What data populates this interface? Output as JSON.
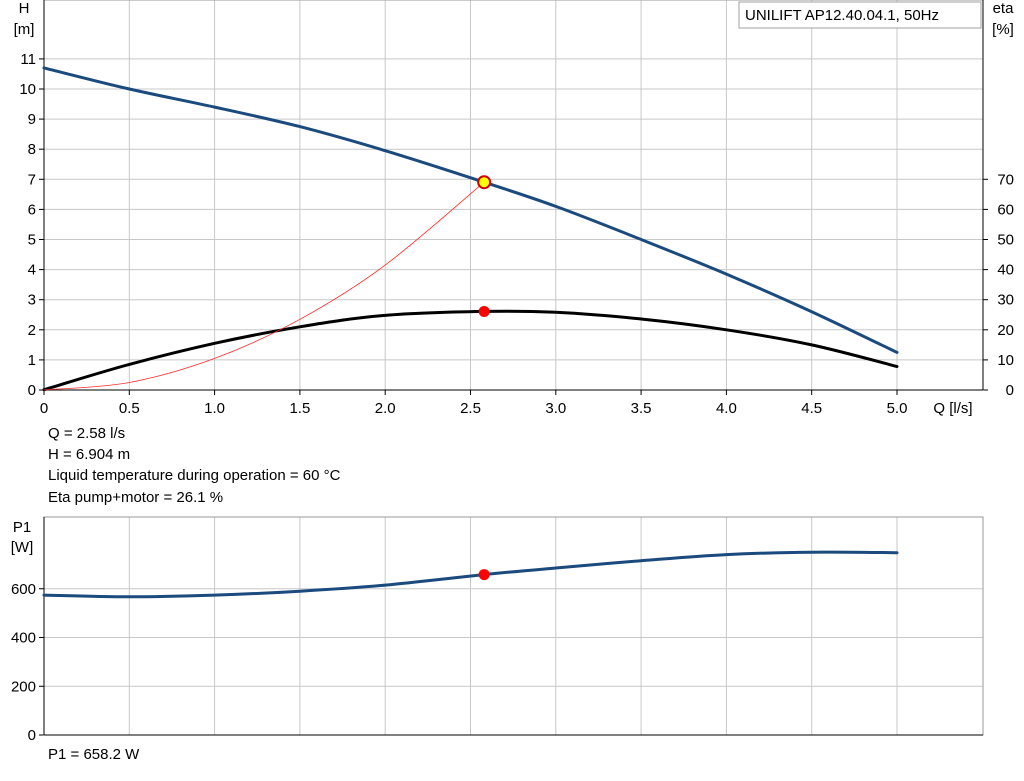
{
  "chart_data": [
    {
      "type": "line",
      "title": "UNILIFT AP12.40.04.1, 50Hz",
      "xlabel": "Q [l/s]",
      "ylabel_lines": [
        "H",
        "[m]"
      ],
      "y2label_lines": [
        "eta",
        "[%]"
      ],
      "xlim": [
        0,
        5.0
      ],
      "ylim": [
        0,
        11
      ],
      "y2lim": [
        0,
        70
      ],
      "x_ticks": [
        "0",
        "0.5",
        "1.0",
        "1.5",
        "2.0",
        "2.5",
        "3.0",
        "3.5",
        "4.0",
        "4.5",
        "5.0"
      ],
      "y_ticks": [
        "0",
        "1",
        "2",
        "3",
        "4",
        "5",
        "6",
        "7",
        "8",
        "9",
        "10",
        "11"
      ],
      "y2_ticks": [
        "0",
        "10",
        "20",
        "30",
        "40",
        "50",
        "60",
        "70"
      ],
      "grid": true,
      "series": [
        {
          "color": "#1a4a7e",
          "axis": "left",
          "points": [
            [
              0,
              10.7
            ],
            [
              0.5,
              10.0
            ],
            [
              1.0,
              9.4
            ],
            [
              1.5,
              8.75
            ],
            [
              2.0,
              7.95
            ],
            [
              2.58,
              6.904
            ],
            [
              3.0,
              6.1
            ],
            [
              3.5,
              5.0
            ],
            [
              4.0,
              3.85
            ],
            [
              4.5,
              2.6
            ],
            [
              5.0,
              1.25
            ]
          ]
        },
        {
          "color": "#000000",
          "axis": "right",
          "points": [
            [
              0,
              0.1
            ],
            [
              0.5,
              8.5
            ],
            [
              1.0,
              15.5
            ],
            [
              1.5,
              21.0
            ],
            [
              2.0,
              24.8
            ],
            [
              2.58,
              26.1
            ],
            [
              3.0,
              25.8
            ],
            [
              3.5,
              23.6
            ],
            [
              4.0,
              20.0
            ],
            [
              4.5,
              15.0
            ],
            [
              5.0,
              7.8
            ]
          ]
        },
        {
          "color": "#ff2a2a",
          "axis": "left",
          "points": [
            [
              0,
              0
            ],
            [
              0.5,
              0.25
            ],
            [
              1.0,
              1.05
            ],
            [
              1.5,
              2.35
            ],
            [
              2.0,
              4.15
            ],
            [
              2.58,
              6.904
            ]
          ]
        }
      ],
      "operating_point": {
        "q": 2.58,
        "h": 6.904,
        "eta": 26.1
      }
    },
    {
      "type": "line",
      "ylabel_lines": [
        "P1",
        "[W]"
      ],
      "xlim": [
        0,
        5.0
      ],
      "ylim": [
        0,
        800
      ],
      "y_ticks": [
        "0",
        "200",
        "400",
        "600"
      ],
      "grid": true,
      "series": [
        {
          "color": "#1a4a7e",
          "points": [
            [
              0,
              574
            ],
            [
              0.5,
              567
            ],
            [
              1.0,
              574
            ],
            [
              1.5,
              590
            ],
            [
              2.0,
              615
            ],
            [
              2.58,
              658.2
            ],
            [
              3.0,
              685
            ],
            [
              3.5,
              715
            ],
            [
              4.0,
              740
            ],
            [
              4.5,
              750
            ],
            [
              5.0,
              748
            ]
          ]
        }
      ],
      "operating_point": {
        "q": 2.58,
        "p1": 658.2
      }
    }
  ],
  "info": {
    "q_line": "Q = 2.58 l/s",
    "h_line": "H = 6.904 m",
    "temp_line": "Liquid temperature during operation = 60 °C",
    "eta_line": "Eta pump+motor = 26.1 %",
    "p1_line": "P1 = 658.2 W"
  },
  "colors": {
    "grid": "#c8c8c8",
    "axis": "#000000",
    "marker_red": "#ff0000",
    "marker_yellow": "#ffff00",
    "marker_outline": "#cc0000"
  }
}
